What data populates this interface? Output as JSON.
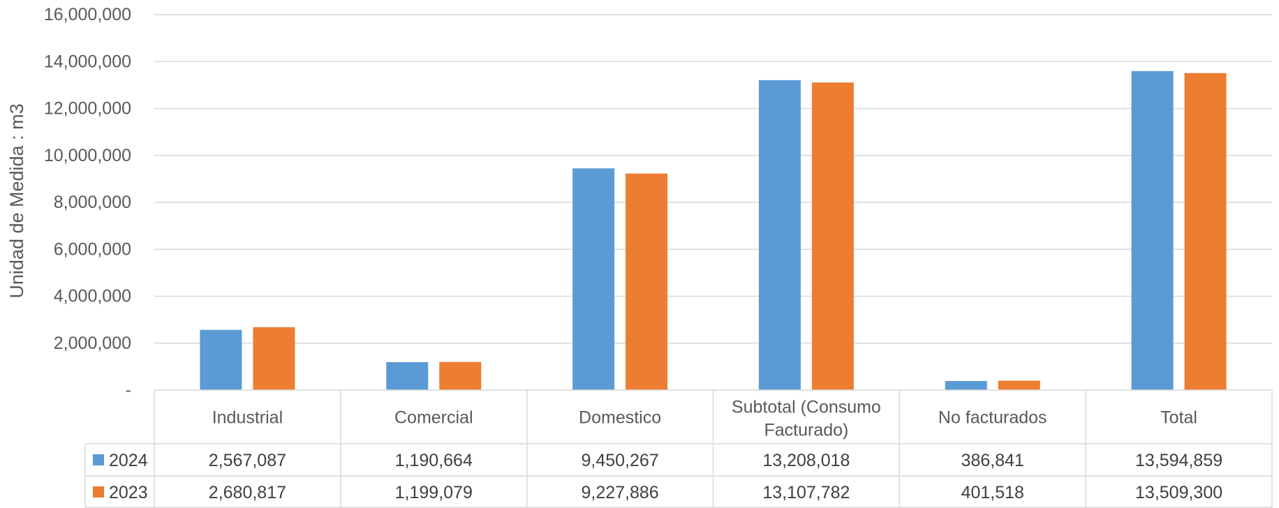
{
  "chart_data": {
    "type": "bar",
    "ylabel": "Unidad de Medida : m3",
    "ylim": [
      0,
      16000000
    ],
    "yticks": [
      0,
      2000000,
      4000000,
      6000000,
      8000000,
      10000000,
      12000000,
      14000000,
      16000000
    ],
    "ytick_labels": [
      "-",
      "2,000,000",
      "4,000,000",
      "6,000,000",
      "8,000,000",
      "10,000,000",
      "12,000,000",
      "14,000,000",
      "16,000,000"
    ],
    "grid": true,
    "legend": "data-table",
    "categories": [
      "Industrial",
      "Comercial",
      "Domestico",
      "Subtotal (Consumo Facturado)",
      "No facturados",
      "Total"
    ],
    "category_lines": [
      [
        "Industrial"
      ],
      [
        "Comercial"
      ],
      [
        "Domestico"
      ],
      [
        "Subtotal (Consumo",
        "Facturado)"
      ],
      [
        "No facturados"
      ],
      [
        "Total"
      ]
    ],
    "series": [
      {
        "name": "2024",
        "color": "#5B9BD5",
        "values": [
          2567087,
          1190664,
          9450267,
          13208018,
          386841,
          13594859
        ],
        "labels": [
          "2,567,087",
          "1,190,664",
          "9,450,267",
          "13,208,018",
          "386,841",
          "13,594,859"
        ]
      },
      {
        "name": "2023",
        "color": "#ED7D31",
        "values": [
          2680817,
          1199079,
          9227886,
          13107782,
          401518,
          13509300
        ],
        "labels": [
          "2,680,817",
          "1,199,079",
          "9,227,886",
          "13,107,782",
          "401,518",
          "13,509,300"
        ]
      }
    ]
  }
}
